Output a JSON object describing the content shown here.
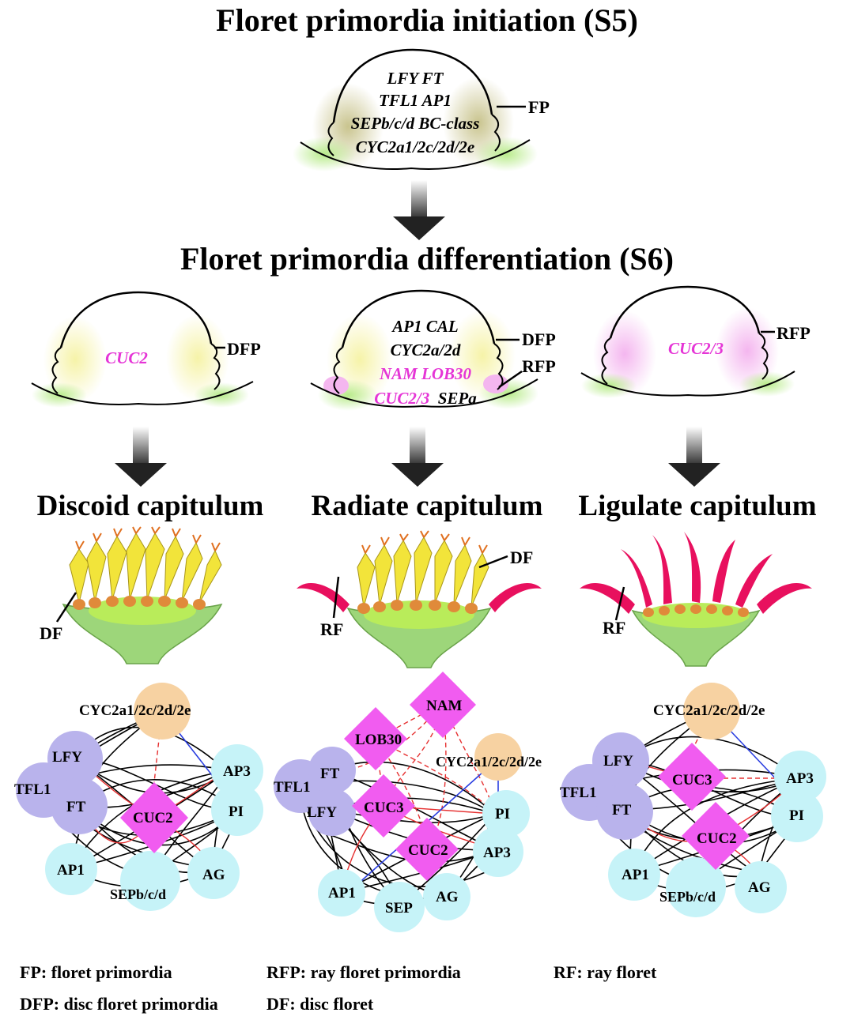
{
  "titles": {
    "s5": "Floret primordia initiation (S5)",
    "s6": "Floret primordia differentiation (S6)"
  },
  "s5": {
    "genes": [
      "LFY  FT",
      "TFL1  AP1",
      "SEPb/c/d  BC-class",
      "CYC2a1/2c/2d/2e"
    ],
    "label": "FP"
  },
  "s6": {
    "discoid": {
      "gene": "CUC2",
      "label": "DFP"
    },
    "radiate": {
      "genes_black": [
        "AP1  CAL",
        "CYC2a/2d"
      ],
      "genes_pink": [
        "NAM  LOB30"
      ],
      "gene_row4_pink": "CUC2/3",
      "gene_row4_black": "SEPa",
      "label_dfp": "DFP",
      "label_rfp": "RFP"
    },
    "ligulate": {
      "gene": "CUC2/3",
      "label": "RFP"
    }
  },
  "capitula": {
    "discoid": {
      "title": "Discoid capitulum",
      "label": "DF"
    },
    "radiate": {
      "title": "Radiate capitulum",
      "label_df": "DF",
      "label_rf": "RF"
    },
    "ligulate": {
      "title": "Ligulate capitulum",
      "label": "RF"
    }
  },
  "networks": {
    "discoid": {
      "cyc": "CYC2a1/2c/2d/2e",
      "lfy": "LFY",
      "tfl1": "TFL1",
      "ft": "FT",
      "ap3": "AP3",
      "pi": "PI",
      "ap1": "AP1",
      "sep": "SEPb/c/d",
      "ag": "AG",
      "cuc": "CUC2"
    },
    "radiate": {
      "nam": "NAM",
      "lob30": "LOB30",
      "cyc": "CYC2a1/2c/2d/2e",
      "tfl1": "TFL1",
      "ft": "FT",
      "lfy": "LFY",
      "cuc3": "CUC3",
      "pi": "PI",
      "cuc2": "CUC2",
      "ap3": "AP3",
      "ap1": "AP1",
      "sep": "SEP",
      "ag": "AG"
    },
    "ligulate": {
      "cyc": "CYC2a1/2c/2d/2e",
      "lfy": "LFY",
      "tfl1": "TFL1",
      "ft": "FT",
      "cuc3": "CUC3",
      "ap3": "AP3",
      "pi": "PI",
      "cuc2": "CUC2",
      "ap1": "AP1",
      "sep": "SEPb/c/d",
      "ag": "AG"
    }
  },
  "legend": {
    "fp": "FP: floret primordia",
    "dfp": "DFP: disc floret primordia",
    "rfp": "RFP: ray floret primordia",
    "df": "DF: disc floret",
    "rf": "RF: ray floret"
  },
  "colors": {
    "purple_node": "#b9b3ec",
    "cyan_node": "#c6f3f8",
    "peach_node": "#f7d2a2",
    "magenta_node": "#f15cf0",
    "pink_text": "#e535d6",
    "ray_red": "#e8105e",
    "disc_yellow": "#f2e43a",
    "receptacle_green": "#b9ec5a",
    "bract_green": "#9dd67a"
  }
}
